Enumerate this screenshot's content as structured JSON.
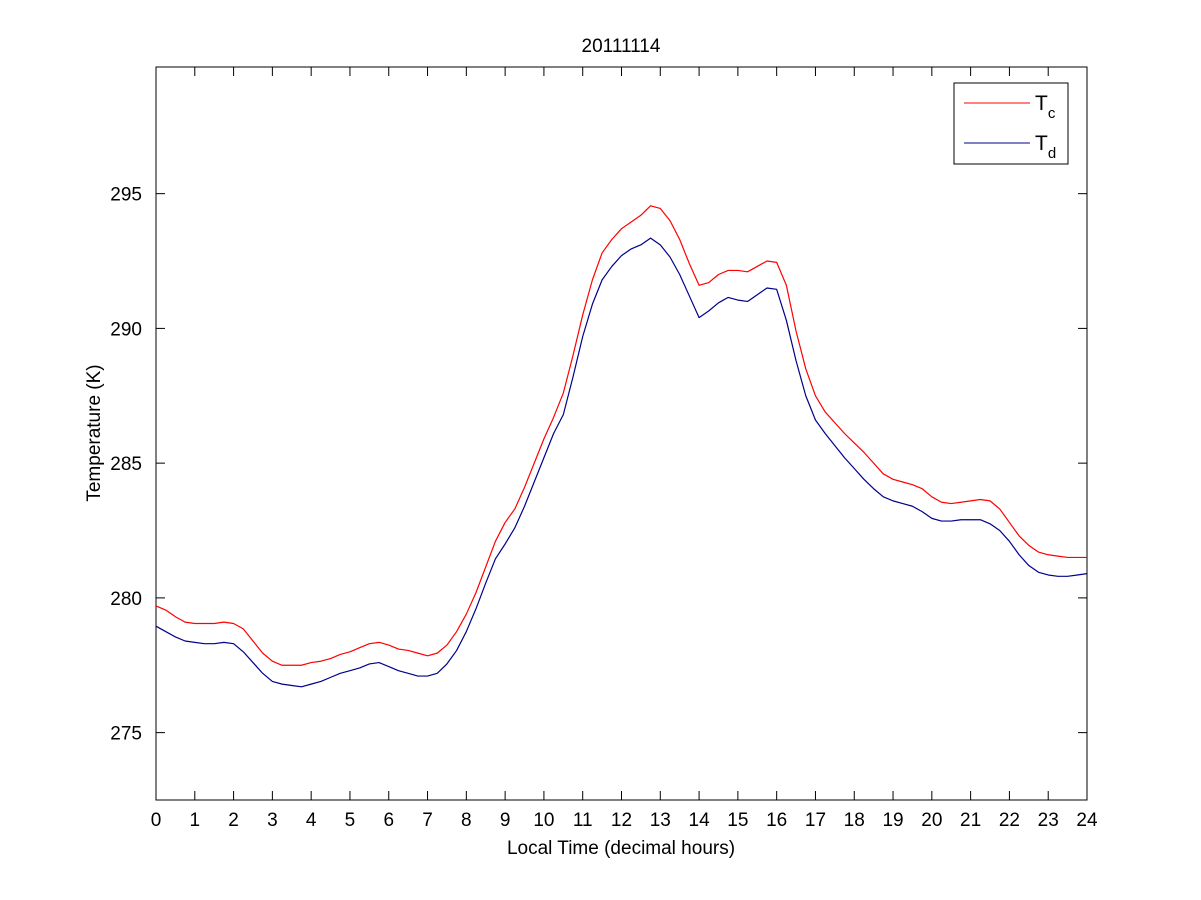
{
  "chart_data": {
    "type": "line",
    "title": "20111114",
    "xlabel": "Local Time (decimal hours)",
    "ylabel": "Temperature (K)",
    "xlim": [
      0,
      24
    ],
    "ylim": [
      272.5,
      299.7
    ],
    "xticks": [
      0,
      1,
      2,
      3,
      4,
      5,
      6,
      7,
      8,
      9,
      10,
      11,
      12,
      13,
      14,
      15,
      16,
      17,
      18,
      19,
      20,
      21,
      22,
      23,
      24
    ],
    "yticks": [
      275,
      280,
      285,
      290,
      295
    ],
    "grid": false,
    "legend_position": "top-right",
    "series": [
      {
        "name_main": "T",
        "name_sub": "c",
        "color": "#ff0000",
        "points": [
          [
            0,
            279.7
          ],
          [
            0.25,
            279.55
          ],
          [
            0.5,
            279.3
          ],
          [
            0.75,
            279.1
          ],
          [
            1,
            279.05
          ],
          [
            1.25,
            279.05
          ],
          [
            1.5,
            279.05
          ],
          [
            1.75,
            279.1
          ],
          [
            2,
            279.05
          ],
          [
            2.25,
            278.85
          ],
          [
            2.5,
            278.4
          ],
          [
            2.75,
            277.95
          ],
          [
            3,
            277.65
          ],
          [
            3.25,
            277.5
          ],
          [
            3.5,
            277.5
          ],
          [
            3.75,
            277.5
          ],
          [
            4,
            277.6
          ],
          [
            4.25,
            277.65
          ],
          [
            4.5,
            277.75
          ],
          [
            4.75,
            277.9
          ],
          [
            5,
            278.0
          ],
          [
            5.25,
            278.15
          ],
          [
            5.5,
            278.3
          ],
          [
            5.75,
            278.35
          ],
          [
            6,
            278.25
          ],
          [
            6.25,
            278.1
          ],
          [
            6.5,
            278.05
          ],
          [
            6.75,
            277.95
          ],
          [
            7,
            277.85
          ],
          [
            7.25,
            277.95
          ],
          [
            7.5,
            278.25
          ],
          [
            7.75,
            278.75
          ],
          [
            8,
            279.4
          ],
          [
            8.25,
            280.2
          ],
          [
            8.5,
            281.15
          ],
          [
            8.75,
            282.1
          ],
          [
            9,
            282.8
          ],
          [
            9.25,
            283.3
          ],
          [
            9.5,
            284.1
          ],
          [
            9.75,
            285.0
          ],
          [
            10,
            285.9
          ],
          [
            10.25,
            286.7
          ],
          [
            10.5,
            287.6
          ],
          [
            10.75,
            289.0
          ],
          [
            11,
            290.5
          ],
          [
            11.25,
            291.8
          ],
          [
            11.5,
            292.8
          ],
          [
            11.75,
            293.3
          ],
          [
            12,
            293.7
          ],
          [
            12.25,
            293.95
          ],
          [
            12.5,
            294.2
          ],
          [
            12.75,
            294.55
          ],
          [
            13,
            294.45
          ],
          [
            13.25,
            294.0
          ],
          [
            13.5,
            293.3
          ],
          [
            13.75,
            292.4
          ],
          [
            14,
            291.6
          ],
          [
            14.25,
            291.7
          ],
          [
            14.5,
            292.0
          ],
          [
            14.75,
            292.15
          ],
          [
            15,
            292.15
          ],
          [
            15.25,
            292.1
          ],
          [
            15.5,
            292.3
          ],
          [
            15.75,
            292.5
          ],
          [
            16,
            292.45
          ],
          [
            16.25,
            291.6
          ],
          [
            16.5,
            289.9
          ],
          [
            16.75,
            288.5
          ],
          [
            17,
            287.5
          ],
          [
            17.25,
            286.9
          ],
          [
            17.5,
            286.5
          ],
          [
            17.75,
            286.1
          ],
          [
            18,
            285.75
          ],
          [
            18.25,
            285.4
          ],
          [
            18.5,
            285.0
          ],
          [
            18.75,
            284.6
          ],
          [
            19,
            284.4
          ],
          [
            19.25,
            284.3
          ],
          [
            19.5,
            284.2
          ],
          [
            19.75,
            284.05
          ],
          [
            20,
            283.75
          ],
          [
            20.25,
            283.55
          ],
          [
            20.5,
            283.5
          ],
          [
            20.75,
            283.55
          ],
          [
            21,
            283.6
          ],
          [
            21.25,
            283.65
          ],
          [
            21.5,
            283.6
          ],
          [
            21.75,
            283.3
          ],
          [
            22,
            282.8
          ],
          [
            22.25,
            282.3
          ],
          [
            22.5,
            281.95
          ],
          [
            22.75,
            281.7
          ],
          [
            23,
            281.6
          ],
          [
            23.25,
            281.55
          ],
          [
            23.5,
            281.5
          ],
          [
            23.75,
            281.5
          ],
          [
            24,
            281.5
          ]
        ]
      },
      {
        "name_main": "T",
        "name_sub": "d",
        "color": "#00008b",
        "points": [
          [
            0,
            278.95
          ],
          [
            0.25,
            278.75
          ],
          [
            0.5,
            278.55
          ],
          [
            0.75,
            278.4
          ],
          [
            1,
            278.35
          ],
          [
            1.25,
            278.3
          ],
          [
            1.5,
            278.3
          ],
          [
            1.75,
            278.35
          ],
          [
            2,
            278.3
          ],
          [
            2.25,
            278.0
          ],
          [
            2.5,
            277.6
          ],
          [
            2.75,
            277.2
          ],
          [
            3,
            276.9
          ],
          [
            3.25,
            276.8
          ],
          [
            3.5,
            276.75
          ],
          [
            3.75,
            276.7
          ],
          [
            4,
            276.8
          ],
          [
            4.25,
            276.9
          ],
          [
            4.5,
            277.05
          ],
          [
            4.75,
            277.2
          ],
          [
            5,
            277.3
          ],
          [
            5.25,
            277.4
          ],
          [
            5.5,
            277.55
          ],
          [
            5.75,
            277.6
          ],
          [
            6,
            277.45
          ],
          [
            6.25,
            277.3
          ],
          [
            6.5,
            277.2
          ],
          [
            6.75,
            277.1
          ],
          [
            7,
            277.1
          ],
          [
            7.25,
            277.2
          ],
          [
            7.5,
            277.55
          ],
          [
            7.75,
            278.05
          ],
          [
            8,
            278.75
          ],
          [
            8.25,
            279.6
          ],
          [
            8.5,
            280.55
          ],
          [
            8.75,
            281.45
          ],
          [
            9,
            282.0
          ],
          [
            9.25,
            282.6
          ],
          [
            9.5,
            283.4
          ],
          [
            9.75,
            284.3
          ],
          [
            10,
            285.2
          ],
          [
            10.25,
            286.1
          ],
          [
            10.5,
            286.8
          ],
          [
            10.75,
            288.2
          ],
          [
            11,
            289.7
          ],
          [
            11.25,
            290.9
          ],
          [
            11.5,
            291.8
          ],
          [
            11.75,
            292.3
          ],
          [
            12,
            292.7
          ],
          [
            12.25,
            292.95
          ],
          [
            12.5,
            293.1
          ],
          [
            12.75,
            293.35
          ],
          [
            13,
            293.1
          ],
          [
            13.25,
            292.65
          ],
          [
            13.5,
            292.0
          ],
          [
            13.75,
            291.2
          ],
          [
            14,
            290.4
          ],
          [
            14.25,
            290.65
          ],
          [
            14.5,
            290.95
          ],
          [
            14.75,
            291.15
          ],
          [
            15,
            291.05
          ],
          [
            15.25,
            291.0
          ],
          [
            15.5,
            291.25
          ],
          [
            15.75,
            291.5
          ],
          [
            16,
            291.45
          ],
          [
            16.25,
            290.3
          ],
          [
            16.5,
            288.8
          ],
          [
            16.75,
            287.5
          ],
          [
            17,
            286.6
          ],
          [
            17.25,
            286.1
          ],
          [
            17.5,
            285.65
          ],
          [
            17.75,
            285.2
          ],
          [
            18,
            284.8
          ],
          [
            18.25,
            284.4
          ],
          [
            18.5,
            284.05
          ],
          [
            18.75,
            283.75
          ],
          [
            19,
            283.6
          ],
          [
            19.25,
            283.5
          ],
          [
            19.5,
            283.4
          ],
          [
            19.75,
            283.2
          ],
          [
            20,
            282.95
          ],
          [
            20.25,
            282.85
          ],
          [
            20.5,
            282.85
          ],
          [
            20.75,
            282.9
          ],
          [
            21,
            282.9
          ],
          [
            21.25,
            282.9
          ],
          [
            21.5,
            282.75
          ],
          [
            21.75,
            282.5
          ],
          [
            22,
            282.1
          ],
          [
            22.25,
            281.6
          ],
          [
            22.5,
            281.2
          ],
          [
            22.75,
            280.95
          ],
          [
            23,
            280.85
          ],
          [
            23.25,
            280.8
          ],
          [
            23.5,
            280.8
          ],
          [
            23.75,
            280.85
          ],
          [
            24,
            280.9
          ]
        ]
      }
    ]
  }
}
